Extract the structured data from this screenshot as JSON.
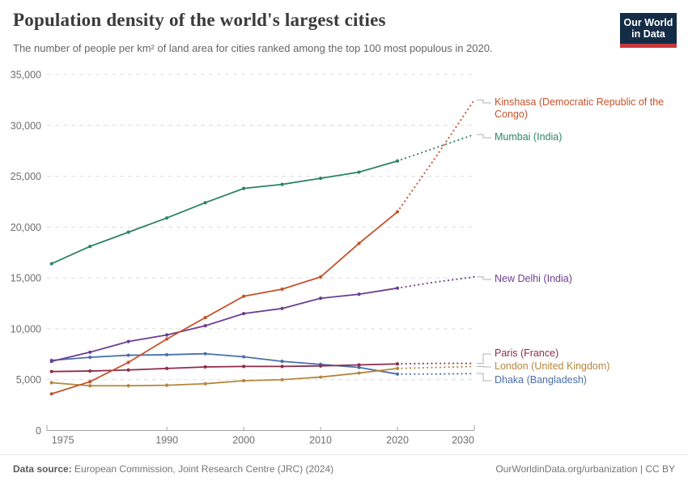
{
  "header": {
    "title": "Population density of the world's largest cities",
    "subtitle": "The number of people per km² of land area for cities ranked among the top 100 most populous in 2020.",
    "logo": {
      "line1": "Our World",
      "line2": "in Data"
    }
  },
  "chart_data": {
    "type": "line",
    "title": "Population density of the world's largest cities",
    "subtitle": "The number of people per km² of land area for cities ranked among the top 100 most populous in 2020.",
    "xlabel": "",
    "ylabel": "",
    "x": [
      1975,
      1980,
      1985,
      1990,
      1995,
      2000,
      2005,
      2010,
      2015,
      2020,
      2025,
      2030
    ],
    "solid_until_x": 2020,
    "projection_note": "values after 2020 drawn as dotted projection",
    "series": [
      {
        "id": "dhaka",
        "name": "Dhaka (Bangladesh)",
        "color": "#4c6fa9",
        "values": [
          6900,
          7200,
          7400,
          7450,
          7550,
          7250,
          6800,
          6500,
          6200,
          5550,
          5550,
          5600
        ]
      },
      {
        "id": "london",
        "name": "London (United Kingdom)",
        "color": "#b5873e",
        "values": [
          4700,
          4400,
          4400,
          4450,
          4600,
          4900,
          5000,
          5250,
          5650,
          6100,
          6200,
          6300
        ]
      },
      {
        "id": "paris",
        "name": "Paris (France)",
        "color": "#8e2c49",
        "values": [
          5800,
          5850,
          5950,
          6100,
          6250,
          6300,
          6300,
          6350,
          6450,
          6550,
          6600,
          6600
        ]
      },
      {
        "id": "new-delhi",
        "name": "New Delhi (India)",
        "color": "#6d3e91",
        "values": [
          6800,
          7700,
          8750,
          9400,
          10300,
          11500,
          12000,
          13000,
          13400,
          14000,
          14600,
          15100
        ]
      },
      {
        "id": "mumbai",
        "name": "Mumbai (India)",
        "color": "#2c8465",
        "values": [
          16400,
          18100,
          19500,
          20900,
          22400,
          23800,
          24200,
          24800,
          25400,
          26500,
          27800,
          29100
        ]
      },
      {
        "id": "kinshasa",
        "name": "Kinshasa (Democratic Republic of the Congo)",
        "color": "#c4522b",
        "values": [
          3600,
          4800,
          6700,
          9000,
          11100,
          13200,
          13900,
          15100,
          18400,
          21500,
          26900,
          32500
        ]
      }
    ],
    "x_ticks": [
      1975,
      1990,
      2000,
      2010,
      2020,
      2030
    ],
    "y_ticks": [
      0,
      5000,
      10000,
      15000,
      20000,
      25000,
      30000,
      35000
    ],
    "xlim": [
      1974.4,
      2030
    ],
    "ylim": [
      0,
      35000
    ],
    "grid": "horizontal dashed",
    "legend_position": "right edge labels"
  },
  "footer": {
    "datasource_label": "Data source:",
    "datasource_value": "European Commission, Joint Research Centre (JRC) (2024)",
    "attribution": "OurWorldinData.org/urbanization | CC BY"
  },
  "colors": {
    "logo_navy": "#152c47",
    "logo_red": "#c8383c",
    "grid": "#dcdcdc",
    "axis": "#a3a3a3",
    "tick_text": "#6e6e6e",
    "connector": "#b0b0b0"
  }
}
